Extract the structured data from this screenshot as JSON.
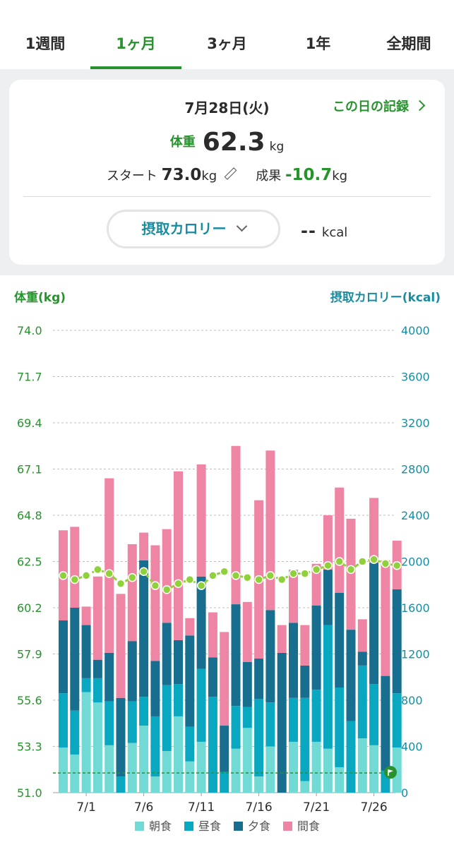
{
  "tabs": [
    {
      "label": "1週間",
      "active": false
    },
    {
      "label": "1ヶ月",
      "active": true
    },
    {
      "label": "3ヶ月",
      "active": false
    },
    {
      "label": "1年",
      "active": false
    },
    {
      "label": "全期間",
      "active": false
    }
  ],
  "summary": {
    "date": "7月28日(火)",
    "record_link": "この日の記録",
    "weight_label": "体重",
    "weight_value": "62.3",
    "weight_unit": "kg",
    "start_label": "スタート",
    "start_value": "73.0",
    "start_unit": "kg",
    "result_label": "成果",
    "result_value": "-10.7",
    "result_unit": "kg",
    "calorie_selector": "摂取カロリー",
    "calorie_value": "--",
    "calorie_unit": "kcal"
  },
  "colors": {
    "accent_green": "#28922e",
    "weight_line": "#8fd13a",
    "breakfast": "#72dad4",
    "lunch": "#0aa8c0",
    "dinner": "#176e8f",
    "snack": "#ef85a4",
    "right_axis": "#1a8ca0"
  },
  "chart_data": {
    "type": "bar",
    "left_axis_title": "体重(kg)",
    "right_axis_title": "摂取カロリー(kcal)",
    "left_ticks": [
      "74.0",
      "71.7",
      "69.4",
      "67.1",
      "64.8",
      "62.5",
      "60.2",
      "57.9",
      "55.6",
      "53.3",
      "51.0"
    ],
    "right_ticks": [
      "4000",
      "3600",
      "3200",
      "2800",
      "2400",
      "2000",
      "1600",
      "1200",
      "800",
      "400",
      "0"
    ],
    "weight_ylim": [
      51.0,
      74.0
    ],
    "calorie_ylim": [
      0,
      4000
    ],
    "x_ticks": [
      "7/1",
      "7/6",
      "7/11",
      "7/16",
      "7/21",
      "7/26"
    ],
    "categories": [
      "6/29",
      "6/30",
      "7/1",
      "7/2",
      "7/3",
      "7/4",
      "7/5",
      "7/6",
      "7/7",
      "7/8",
      "7/9",
      "7/10",
      "7/11",
      "7/12",
      "7/13",
      "7/14",
      "7/15",
      "7/16",
      "7/17",
      "7/18",
      "7/19",
      "7/20",
      "7/21",
      "7/22",
      "7/23",
      "7/24",
      "7/25",
      "7/26",
      "7/27",
      "7/28"
    ],
    "series": [
      {
        "name": "朝食",
        "values": [
          390,
          330,
          870,
          780,
          410,
          0,
          430,
          580,
          140,
          360,
          660,
          270,
          440,
          0,
          0,
          380,
          560,
          140,
          400,
          0,
          440,
          100,
          440,
          380,
          220,
          0,
          470,
          410,
          0,
          390
        ]
      },
      {
        "name": "昼食",
        "values": [
          470,
          380,
          120,
          210,
          380,
          140,
          360,
          250,
          520,
          570,
          280,
          300,
          630,
          830,
          180,
          370,
          180,
          670,
          380,
          0,
          380,
          720,
          450,
          1070,
          690,
          620,
          630,
          530,
          190,
          470
        ]
      },
      {
        "name": "夕食",
        "values": [
          630,
          890,
          460,
          160,
          420,
          680,
          520,
          1180,
          480,
          540,
          380,
          790,
          800,
          340,
          400,
          880,
          390,
          350,
          800,
          1210,
          650,
          280,
          730,
          480,
          820,
          790,
          120,
          1050,
          820,
          900
        ]
      },
      {
        "name": "間食",
        "values": [
          780,
          700,
          160,
          720,
          1510,
          900,
          840,
          240,
          1000,
          810,
          1460,
          150,
          970,
          390,
          810,
          1370,
          520,
          1370,
          1380,
          240,
          460,
          350,
          360,
          470,
          910,
          960,
          280,
          560,
          1000,
          420
        ]
      }
    ],
    "weight": [
      61.8,
      61.6,
      61.8,
      62.1,
      61.9,
      61.4,
      61.7,
      62.0,
      61.3,
      61.1,
      61.4,
      61.6,
      61.3,
      61.8,
      62.0,
      61.8,
      61.7,
      61.6,
      61.8,
      61.6,
      61.9,
      61.9,
      62.1,
      62.3,
      62.5,
      62.1,
      62.5,
      62.6,
      62.4,
      62.3
    ],
    "target_line_kcal": 170,
    "legend": [
      "朝食",
      "昼食",
      "夕食",
      "間食"
    ]
  }
}
